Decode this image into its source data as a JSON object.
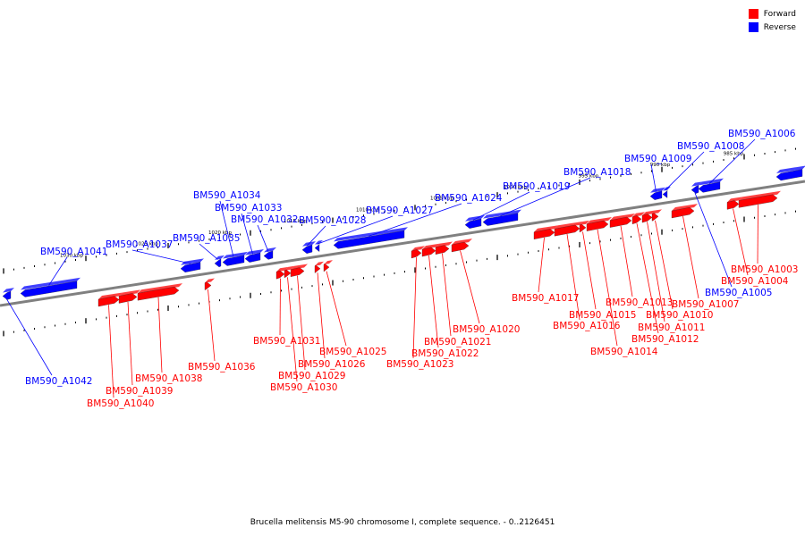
{
  "legend": {
    "forward_label": "Forward",
    "reverse_label": "Reverse",
    "forward_color": "#ff0000",
    "reverse_color": "#0000ff"
  },
  "caption": "Brucella melitensis M5-90 chromosome I, complete sequence. - 0..2126451",
  "colors": {
    "forward": "#ff0000",
    "reverse": "#0000ff",
    "axis": "#808080"
  },
  "ruler": {
    "labels": [
      "1030 kbp",
      "1025 kbp",
      "1020 kbp",
      "1015 kbp",
      "1010 kbp",
      "1005 kbp",
      "1000 kbp",
      "995 kbp",
      "990 kbp",
      "985 kbp"
    ]
  },
  "genes": [
    {
      "name": "BM590_A1042",
      "strand": "reverse"
    },
    {
      "name": "BM590_A1041",
      "strand": "reverse"
    },
    {
      "name": "BM590_A1040",
      "strand": "forward"
    },
    {
      "name": "BM590_A1039",
      "strand": "forward"
    },
    {
      "name": "BM590_A1038",
      "strand": "forward"
    },
    {
      "name": "BM590_A1037",
      "strand": "reverse"
    },
    {
      "name": "BM590_A1036",
      "strand": "forward"
    },
    {
      "name": "BM590_A1035",
      "strand": "reverse"
    },
    {
      "name": "BM590_A1034",
      "strand": "reverse"
    },
    {
      "name": "BM590_A1033",
      "strand": "reverse"
    },
    {
      "name": "BM590_A1032",
      "strand": "reverse"
    },
    {
      "name": "BM590_A1031",
      "strand": "forward"
    },
    {
      "name": "BM590_A1030",
      "strand": "forward"
    },
    {
      "name": "BM590_A1029",
      "strand": "forward"
    },
    {
      "name": "BM590_A1028",
      "strand": "reverse"
    },
    {
      "name": "BM590_A1027",
      "strand": "reverse"
    },
    {
      "name": "BM590_A1026",
      "strand": "forward"
    },
    {
      "name": "BM590_A1025",
      "strand": "forward"
    },
    {
      "name": "BM590_A1024",
      "strand": "reverse"
    },
    {
      "name": "BM590_A1023",
      "strand": "forward"
    },
    {
      "name": "BM590_A1022",
      "strand": "forward"
    },
    {
      "name": "BM590_A1021",
      "strand": "forward"
    },
    {
      "name": "BM590_A1020",
      "strand": "forward"
    },
    {
      "name": "BM590_A1019",
      "strand": "reverse"
    },
    {
      "name": "BM590_A1018",
      "strand": "reverse"
    },
    {
      "name": "BM590_A1017",
      "strand": "forward"
    },
    {
      "name": "BM590_A1016",
      "strand": "forward"
    },
    {
      "name": "BM590_A1015",
      "strand": "forward"
    },
    {
      "name": "BM590_A1014",
      "strand": "forward"
    },
    {
      "name": "BM590_A1013",
      "strand": "forward"
    },
    {
      "name": "BM590_A1012",
      "strand": "forward"
    },
    {
      "name": "BM590_A1011",
      "strand": "forward"
    },
    {
      "name": "BM590_A1010",
      "strand": "forward"
    },
    {
      "name": "BM590_A1009",
      "strand": "reverse"
    },
    {
      "name": "BM590_A1008",
      "strand": "reverse"
    },
    {
      "name": "BM590_A1007",
      "strand": "forward"
    },
    {
      "name": "BM590_A1006",
      "strand": "reverse"
    },
    {
      "name": "BM590_A1005",
      "strand": "reverse"
    },
    {
      "name": "BM590_A1004",
      "strand": "forward"
    },
    {
      "name": "BM590_A1003",
      "strand": "forward"
    }
  ]
}
